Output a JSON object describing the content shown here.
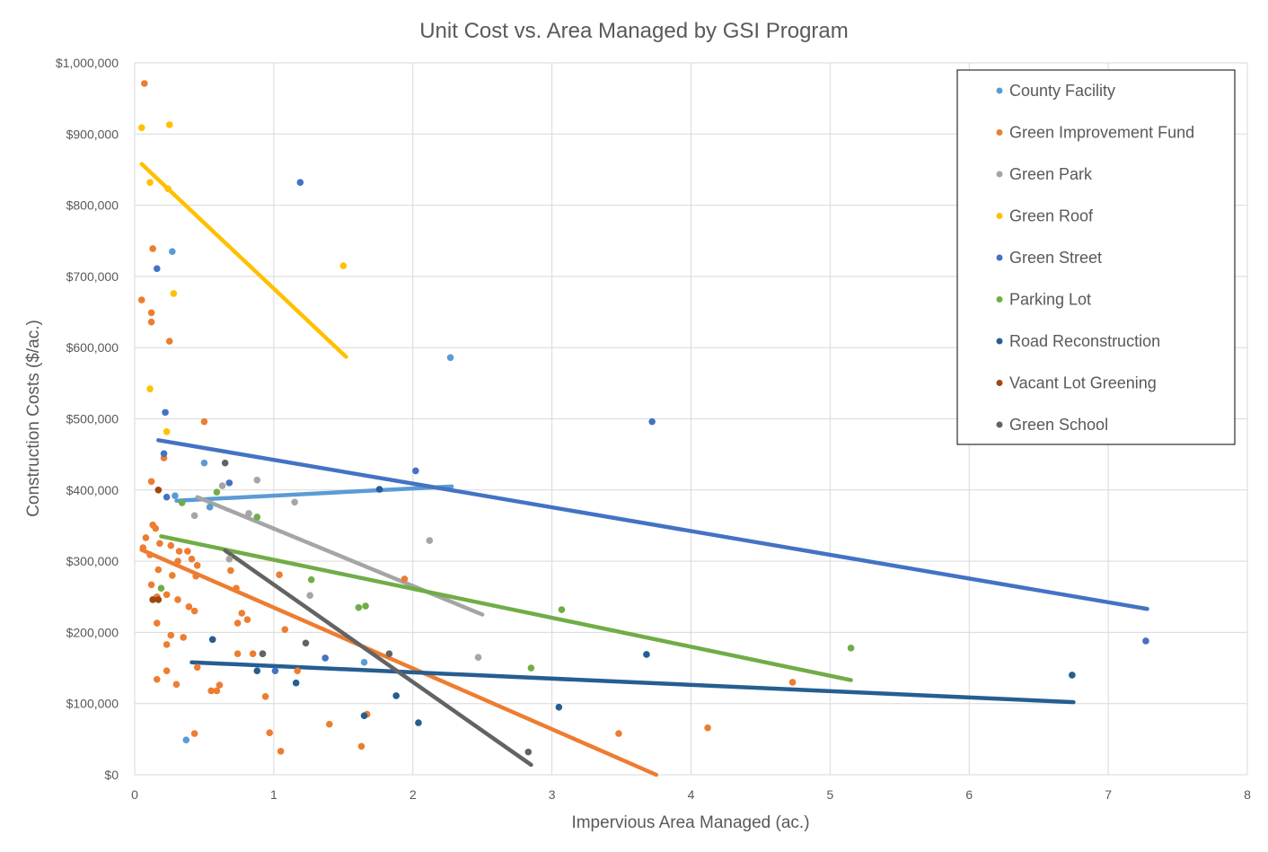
{
  "chart_data": {
    "type": "scatter",
    "title": "Unit Cost vs. Area Managed by GSI Program",
    "xlabel": "Impervious  Area Managed (ac.)",
    "ylabel": "Construction Costs ($/ac.)",
    "xlim": [
      0,
      8
    ],
    "ylim": [
      0,
      1000000
    ],
    "x_ticks": [
      0,
      1,
      2,
      3,
      4,
      5,
      6,
      7,
      8
    ],
    "x_tick_labels": [
      "0",
      "1",
      "2",
      "3",
      "4",
      "5",
      "6",
      "7",
      "8"
    ],
    "y_ticks": [
      0,
      100000,
      200000,
      300000,
      400000,
      500000,
      600000,
      700000,
      800000,
      900000,
      1000000
    ],
    "y_tick_labels": [
      "$0",
      "$100,000",
      "$200,000",
      "$300,000",
      "$400,000",
      "$500,000",
      "$600,000",
      "$700,000",
      "$800,000",
      "$900,000",
      "$1,000,000"
    ],
    "grid": true,
    "legend_position": "top-right",
    "y_units_note": "points given in $ thousands",
    "series": [
      {
        "name": "County Facility",
        "color": "#5B9BD5",
        "points": [
          [
            0.27,
            735
          ],
          [
            2.27,
            586
          ],
          [
            0.5,
            438
          ],
          [
            0.29,
            392
          ],
          [
            0.54,
            376
          ],
          [
            1.65,
            158
          ],
          [
            0.37,
            49
          ]
        ],
        "trend": [
          [
            0.3,
            385
          ],
          [
            2.28,
            405
          ]
        ]
      },
      {
        "name": "Green Improvement Fund",
        "color": "#ED7D31",
        "points": [
          [
            0.07,
            971
          ],
          [
            0.05,
            667
          ],
          [
            0.13,
            739
          ],
          [
            0.12,
            649
          ],
          [
            0.12,
            636
          ],
          [
            0.25,
            609
          ],
          [
            0.5,
            496
          ],
          [
            0.21,
            445
          ],
          [
            0.12,
            412
          ],
          [
            0.13,
            351
          ],
          [
            0.15,
            346
          ],
          [
            0.08,
            333
          ],
          [
            0.06,
            319
          ],
          [
            0.18,
            325
          ],
          [
            0.11,
            309
          ],
          [
            0.26,
            322
          ],
          [
            0.32,
            314
          ],
          [
            0.38,
            314
          ],
          [
            0.41,
            303
          ],
          [
            0.45,
            294
          ],
          [
            0.31,
            300
          ],
          [
            0.17,
            288
          ],
          [
            0.27,
            280
          ],
          [
            0.44,
            279
          ],
          [
            0.69,
            287
          ],
          [
            1.04,
            281
          ],
          [
            1.94,
            275
          ],
          [
            0.12,
            267
          ],
          [
            0.73,
            262
          ],
          [
            0.23,
            253
          ],
          [
            0.31,
            246
          ],
          [
            0.16,
            250
          ],
          [
            0.16,
            213
          ],
          [
            0.39,
            236
          ],
          [
            0.43,
            230
          ],
          [
            0.77,
            227
          ],
          [
            0.81,
            218
          ],
          [
            0.74,
            213
          ],
          [
            0.26,
            196
          ],
          [
            0.35,
            193
          ],
          [
            1.08,
            204
          ],
          [
            0.23,
            183
          ],
          [
            0.74,
            170
          ],
          [
            0.85,
            170
          ],
          [
            0.92,
            170
          ],
          [
            0.16,
            134
          ],
          [
            0.23,
            146
          ],
          [
            0.3,
            127
          ],
          [
            0.45,
            151
          ],
          [
            1.17,
            146
          ],
          [
            0.55,
            118
          ],
          [
            0.59,
            118
          ],
          [
            0.61,
            126
          ],
          [
            0.94,
            110
          ],
          [
            1.67,
            85
          ],
          [
            0.43,
            58
          ],
          [
            0.97,
            59
          ],
          [
            1.4,
            71
          ],
          [
            1.05,
            33
          ],
          [
            1.63,
            40
          ],
          [
            3.48,
            58
          ],
          [
            4.12,
            66
          ],
          [
            4.73,
            130
          ]
        ],
        "trend": [
          [
            0.05,
            316
          ],
          [
            3.75,
            0
          ]
        ]
      },
      {
        "name": "Green Park",
        "color": "#A5A5A5",
        "points": [
          [
            0.43,
            364
          ],
          [
            0.63,
            406
          ],
          [
            0.88,
            414
          ],
          [
            0.68,
            303
          ],
          [
            0.82,
            367
          ],
          [
            1.15,
            383
          ],
          [
            2.12,
            329
          ],
          [
            1.26,
            252
          ],
          [
            2.47,
            165
          ]
        ],
        "trend": [
          [
            0.45,
            390
          ],
          [
            2.5,
            225
          ]
        ]
      },
      {
        "name": "Green Roof",
        "color": "#FFC000",
        "points": [
          [
            0.05,
            909
          ],
          [
            0.25,
            913
          ],
          [
            0.11,
            832
          ],
          [
            0.24,
            823
          ],
          [
            0.28,
            676
          ],
          [
            1.5,
            715
          ],
          [
            0.11,
            542
          ],
          [
            0.23,
            482
          ]
        ],
        "trend": [
          [
            0.05,
            858
          ],
          [
            1.52,
            587
          ]
        ]
      },
      {
        "name": "Green Street",
        "color": "#4472C4",
        "points": [
          [
            0.16,
            711
          ],
          [
            1.19,
            832
          ],
          [
            0.22,
            509
          ],
          [
            0.21,
            451
          ],
          [
            0.68,
            410
          ],
          [
            2.02,
            427
          ],
          [
            3.72,
            496
          ],
          [
            7.27,
            188
          ],
          [
            1.37,
            164
          ],
          [
            1.01,
            146
          ],
          [
            0.23,
            390
          ]
        ],
        "trend": [
          [
            0.17,
            470
          ],
          [
            7.28,
            233
          ]
        ]
      },
      {
        "name": "Parking Lot",
        "color": "#70AD47",
        "points": [
          [
            0.34,
            382
          ],
          [
            0.59,
            397
          ],
          [
            0.88,
            362
          ],
          [
            1.27,
            274
          ],
          [
            1.61,
            235
          ],
          [
            1.66,
            237
          ],
          [
            3.07,
            232
          ],
          [
            5.15,
            178
          ],
          [
            2.85,
            150
          ],
          [
            0.19,
            262
          ]
        ],
        "trend": [
          [
            0.19,
            335
          ],
          [
            5.15,
            133
          ]
        ]
      },
      {
        "name": "Road Reconstruction",
        "color": "#255E91",
        "points": [
          [
            0.56,
            190
          ],
          [
            0.88,
            146
          ],
          [
            1.16,
            129
          ],
          [
            1.65,
            83
          ],
          [
            1.88,
            111
          ],
          [
            2.04,
            73
          ],
          [
            3.05,
            95
          ],
          [
            3.68,
            169
          ],
          [
            6.74,
            140
          ],
          [
            1.76,
            401
          ]
        ],
        "trend": [
          [
            0.41,
            158
          ],
          [
            6.75,
            102
          ]
        ]
      },
      {
        "name": "Vacant Lot Greening",
        "color": "#9E480E",
        "points": [
          [
            0.17,
            400
          ],
          [
            0.13,
            246
          ],
          [
            0.17,
            246
          ]
        ],
        "trend": null
      },
      {
        "name": "Green School",
        "color": "#636363",
        "points": [
          [
            0.65,
            438
          ],
          [
            0.92,
            170
          ],
          [
            1.23,
            185
          ],
          [
            1.83,
            170
          ],
          [
            2.83,
            32
          ]
        ],
        "trend": [
          [
            0.65,
            315
          ],
          [
            2.85,
            14
          ]
        ]
      }
    ]
  }
}
